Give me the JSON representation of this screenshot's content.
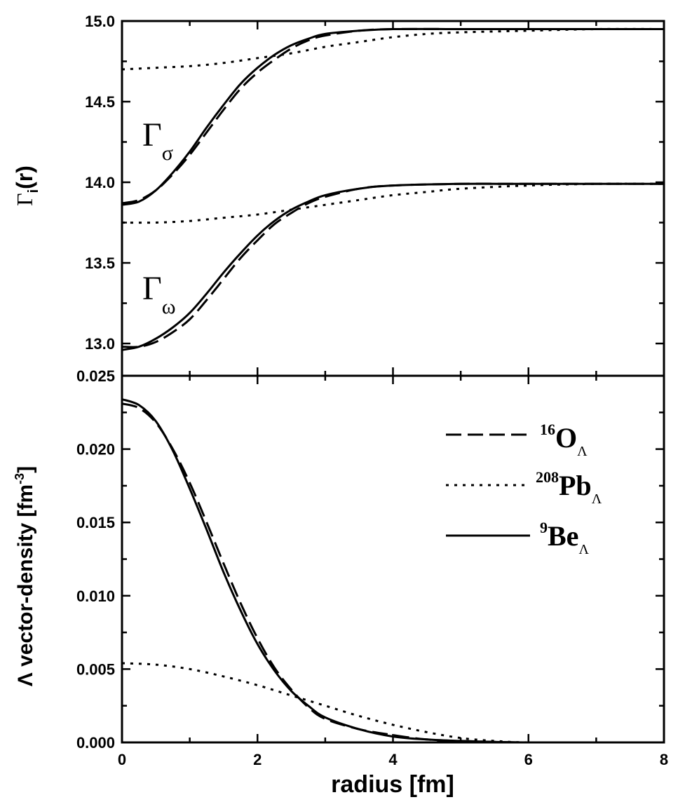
{
  "chart_data": [
    {
      "panel": "top",
      "type": "line",
      "title": "",
      "ylabel": {
        "symbol": "Γ",
        "sub": "i",
        "rest": "(r)"
      },
      "xlim": [
        0,
        8
      ],
      "ylim": [
        12.8,
        15.0
      ],
      "yticks": [
        "13.0",
        "13.5",
        "14.0",
        "14.5",
        "15.0"
      ],
      "grid": false,
      "annotations": [
        {
          "symbol": "Γ",
          "sub": "σ"
        },
        {
          "symbol": "Γ",
          "sub": "ω"
        }
      ],
      "series": [
        {
          "name": "Γσ 16OΛ",
          "style": "dashed",
          "x": [
            0,
            0.25,
            0.5,
            0.75,
            1,
            1.25,
            1.5,
            1.75,
            2,
            2.25,
            2.5,
            2.75,
            3,
            3.5,
            4,
            5,
            6,
            8
          ],
          "values": [
            13.87,
            13.89,
            13.95,
            14.05,
            14.17,
            14.31,
            14.45,
            14.58,
            14.68,
            14.76,
            14.83,
            14.88,
            14.91,
            14.94,
            14.95,
            14.95,
            14.95,
            14.95
          ]
        },
        {
          "name": "Γσ 208PbΛ",
          "style": "dotted",
          "x": [
            0,
            0.5,
            1,
            1.5,
            2,
            2.5,
            3,
            3.5,
            4,
            4.5,
            5,
            6,
            7,
            8
          ],
          "values": [
            14.7,
            14.71,
            14.72,
            14.74,
            14.77,
            14.8,
            14.84,
            14.87,
            14.9,
            14.92,
            14.93,
            14.94,
            14.95,
            14.95
          ]
        },
        {
          "name": "Γσ 9BeΛ",
          "style": "solid",
          "x": [
            0,
            0.25,
            0.5,
            0.75,
            1,
            1.25,
            1.5,
            1.75,
            2,
            2.25,
            2.5,
            2.75,
            3,
            3.5,
            4,
            5,
            6,
            8
          ],
          "values": [
            13.86,
            13.88,
            13.95,
            14.06,
            14.19,
            14.34,
            14.48,
            14.61,
            14.71,
            14.79,
            14.85,
            14.89,
            14.92,
            14.94,
            14.95,
            14.95,
            14.95,
            14.95
          ]
        },
        {
          "name": "Γω 16OΛ",
          "style": "dashed",
          "x": [
            0,
            0.25,
            0.5,
            0.75,
            1,
            1.25,
            1.5,
            1.75,
            2,
            2.25,
            2.5,
            2.75,
            3,
            3.5,
            4,
            5,
            6,
            8
          ],
          "values": [
            12.98,
            12.98,
            13.01,
            13.07,
            13.15,
            13.27,
            13.4,
            13.53,
            13.64,
            13.74,
            13.81,
            13.87,
            13.91,
            13.96,
            13.98,
            13.99,
            13.99,
            13.99
          ]
        },
        {
          "name": "Γω 208PbΛ",
          "style": "dotted",
          "x": [
            0,
            0.5,
            1,
            1.5,
            2,
            2.5,
            3,
            3.5,
            4,
            4.5,
            5,
            6,
            7,
            8
          ],
          "values": [
            13.75,
            13.75,
            13.76,
            13.78,
            13.8,
            13.83,
            13.86,
            13.89,
            13.92,
            13.94,
            13.96,
            13.98,
            13.99,
            13.99
          ]
        },
        {
          "name": "Γω 9BeΛ",
          "style": "solid",
          "x": [
            0,
            0.25,
            0.5,
            0.75,
            1,
            1.25,
            1.5,
            1.75,
            2,
            2.25,
            2.5,
            2.75,
            3,
            3.5,
            4,
            5,
            6,
            8
          ],
          "values": [
            12.96,
            12.98,
            13.03,
            13.1,
            13.19,
            13.31,
            13.44,
            13.56,
            13.67,
            13.76,
            13.83,
            13.88,
            13.92,
            13.96,
            13.98,
            13.99,
            13.99,
            13.99
          ]
        }
      ]
    },
    {
      "panel": "bottom",
      "type": "line",
      "title": "",
      "xlabel": "radius [fm]",
      "ylabel": {
        "main": "Λ vector-density [fm",
        "sup": "-3",
        "end": "]"
      },
      "xlim": [
        0,
        8
      ],
      "ylim": [
        0,
        0.025
      ],
      "xticks": [
        "0",
        "2",
        "4",
        "6",
        "8"
      ],
      "yticks": [
        "0.000",
        "0.005",
        "0.010",
        "0.015",
        "0.020",
        "0.025"
      ],
      "grid": false,
      "legend_position": "right",
      "legend": [
        {
          "sup": "16",
          "base": "O",
          "sub": "Λ",
          "style": "dashed"
        },
        {
          "sup": "208",
          "base": "Pb",
          "sub": "Λ",
          "style": "dotted"
        },
        {
          "sup": "9",
          "base": "Be",
          "sub": "Λ",
          "style": "solid"
        }
      ],
      "series": [
        {
          "name": "16OΛ",
          "style": "dashed",
          "x": [
            0,
            0.25,
            0.5,
            0.75,
            1,
            1.25,
            1.5,
            1.75,
            2,
            2.25,
            2.5,
            2.75,
            3,
            3.5,
            4,
            4.5,
            5,
            6,
            8
          ],
          "values": [
            0.0231,
            0.0228,
            0.0218,
            0.02,
            0.0177,
            0.015,
            0.0122,
            0.0095,
            0.0071,
            0.0051,
            0.0036,
            0.0024,
            0.0016,
            0.0009,
            0.0005,
            0.0002,
            0.0001,
            0.0,
            0.0
          ]
        },
        {
          "name": "208PbΛ",
          "style": "dotted",
          "x": [
            0,
            0.5,
            1,
            1.5,
            2,
            2.5,
            3,
            3.5,
            4,
            4.5,
            5,
            5.5,
            6,
            7,
            8
          ],
          "values": [
            0.0054,
            0.0053,
            0.005,
            0.0045,
            0.0039,
            0.0032,
            0.0025,
            0.0018,
            0.0012,
            0.0007,
            0.0003,
            0.0001,
            0.0,
            0.0,
            0.0
          ]
        },
        {
          "name": "9BeΛ",
          "style": "solid",
          "x": [
            0,
            0.25,
            0.5,
            0.75,
            1,
            1.25,
            1.5,
            1.75,
            2,
            2.25,
            2.5,
            2.75,
            3,
            3.5,
            4,
            4.5,
            5,
            6,
            8
          ],
          "values": [
            0.0234,
            0.023,
            0.0219,
            0.0199,
            0.0173,
            0.0145,
            0.0116,
            0.009,
            0.0067,
            0.0049,
            0.0035,
            0.0025,
            0.0017,
            0.0009,
            0.0004,
            0.0002,
            0.0001,
            0.0,
            0.0
          ]
        }
      ]
    }
  ]
}
